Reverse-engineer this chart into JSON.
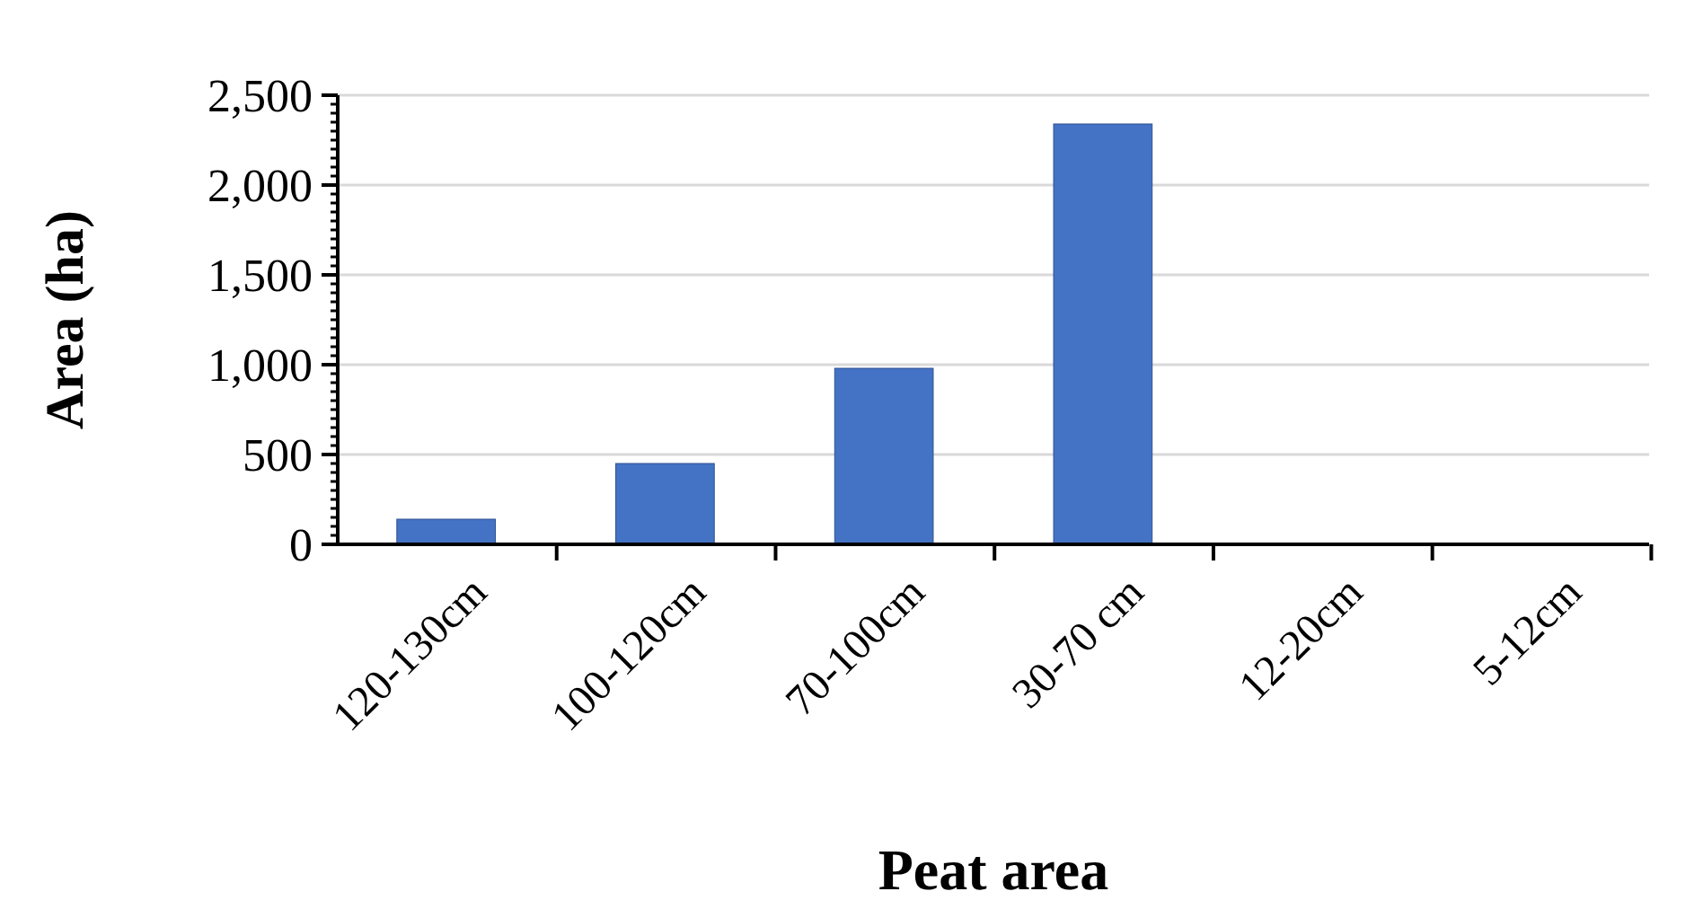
{
  "chart_data": {
    "type": "bar",
    "xlabel": "Peat area",
    "ylabel": "Area (ha)",
    "categories": [
      "120-130cm",
      "100-120cm",
      "70-100cm",
      "30-70 cm",
      "12-20cm",
      "5-12cm"
    ],
    "values": [
      140,
      450,
      980,
      2340,
      null,
      null
    ],
    "color": "#4472c4",
    "ylim": [
      0,
      2500
    ],
    "yticks": [
      {
        "value": 0,
        "label": "0"
      },
      {
        "value": 500,
        "label": "500"
      },
      {
        "value": 1000,
        "label": "1,000"
      },
      {
        "value": 1500,
        "label": "1,500"
      },
      {
        "value": 2000,
        "label": "2,000"
      },
      {
        "value": 2500,
        "label": "2,500"
      }
    ],
    "grid": "y"
  }
}
